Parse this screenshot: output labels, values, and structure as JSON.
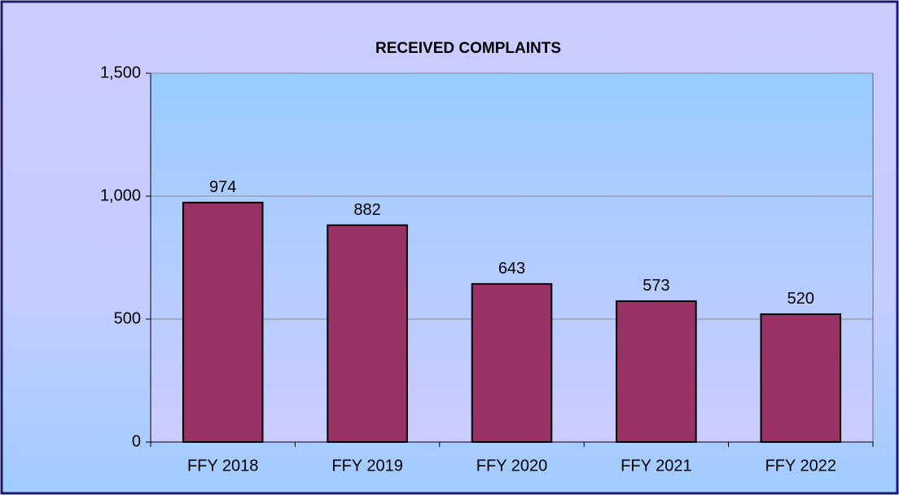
{
  "chart_data": {
    "type": "bar",
    "title": "RECEIVED COMPLAINTS",
    "categories": [
      "FFY 2018",
      "FFY 2019",
      "FFY 2020",
      "FFY 2021",
      "FFY 2022"
    ],
    "values": [
      974,
      882,
      643,
      573,
      520
    ],
    "color": "#993366",
    "ylim": [
      0,
      1500
    ],
    "yticks": [
      0,
      500,
      {
        "value": 1000,
        "label": "1,000"
      },
      {
        "value": 1500,
        "label": "1,500"
      }
    ],
    "grid": true
  }
}
